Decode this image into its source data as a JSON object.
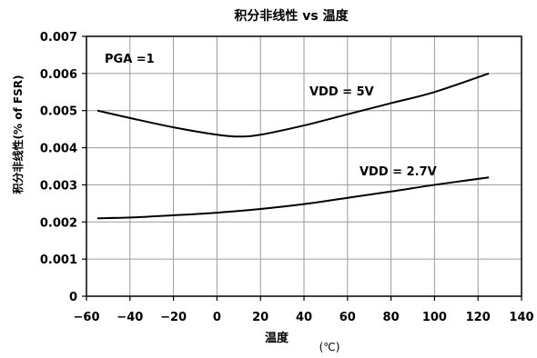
{
  "chart_data": {
    "type": "line",
    "title": "积分非线性 vs 温度",
    "xlabel": "温度",
    "xunit": "(℃)",
    "ylabel": "积分非线性(% of FSR)",
    "xlim": [
      -60,
      140
    ],
    "ylim": [
      0,
      0.007
    ],
    "xticks": [
      -60,
      -40,
      -20,
      0,
      20,
      40,
      60,
      80,
      100,
      120,
      140
    ],
    "xtick_labels": [
      "−60",
      "−40",
      "−20",
      "0",
      "20",
      "40",
      "60",
      "80",
      "100",
      "120",
      "140"
    ],
    "yticks": [
      0,
      0.001,
      0.002,
      0.003,
      0.004,
      0.005,
      0.006,
      0.007
    ],
    "ytick_labels": [
      "0",
      "0.001",
      "0.002",
      "0.003",
      "0.004",
      "0.005",
      "0.006",
      "0.007"
    ],
    "grid": true,
    "annotation": "PGA =1",
    "series": [
      {
        "name": "VDD = 5V",
        "x": [
          -55,
          -40,
          -20,
          0,
          10,
          20,
          40,
          60,
          80,
          100,
          125
        ],
        "y": [
          0.005,
          0.0048,
          0.00455,
          0.00435,
          0.0043,
          0.00435,
          0.0046,
          0.0049,
          0.0052,
          0.0055,
          0.006
        ]
      },
      {
        "name": "VDD = 2.7V",
        "x": [
          -55,
          -40,
          -20,
          0,
          20,
          40,
          60,
          80,
          100,
          125
        ],
        "y": [
          0.0021,
          0.00212,
          0.00218,
          0.00225,
          0.00235,
          0.00248,
          0.00265,
          0.00282,
          0.003,
          0.0032
        ]
      }
    ]
  }
}
